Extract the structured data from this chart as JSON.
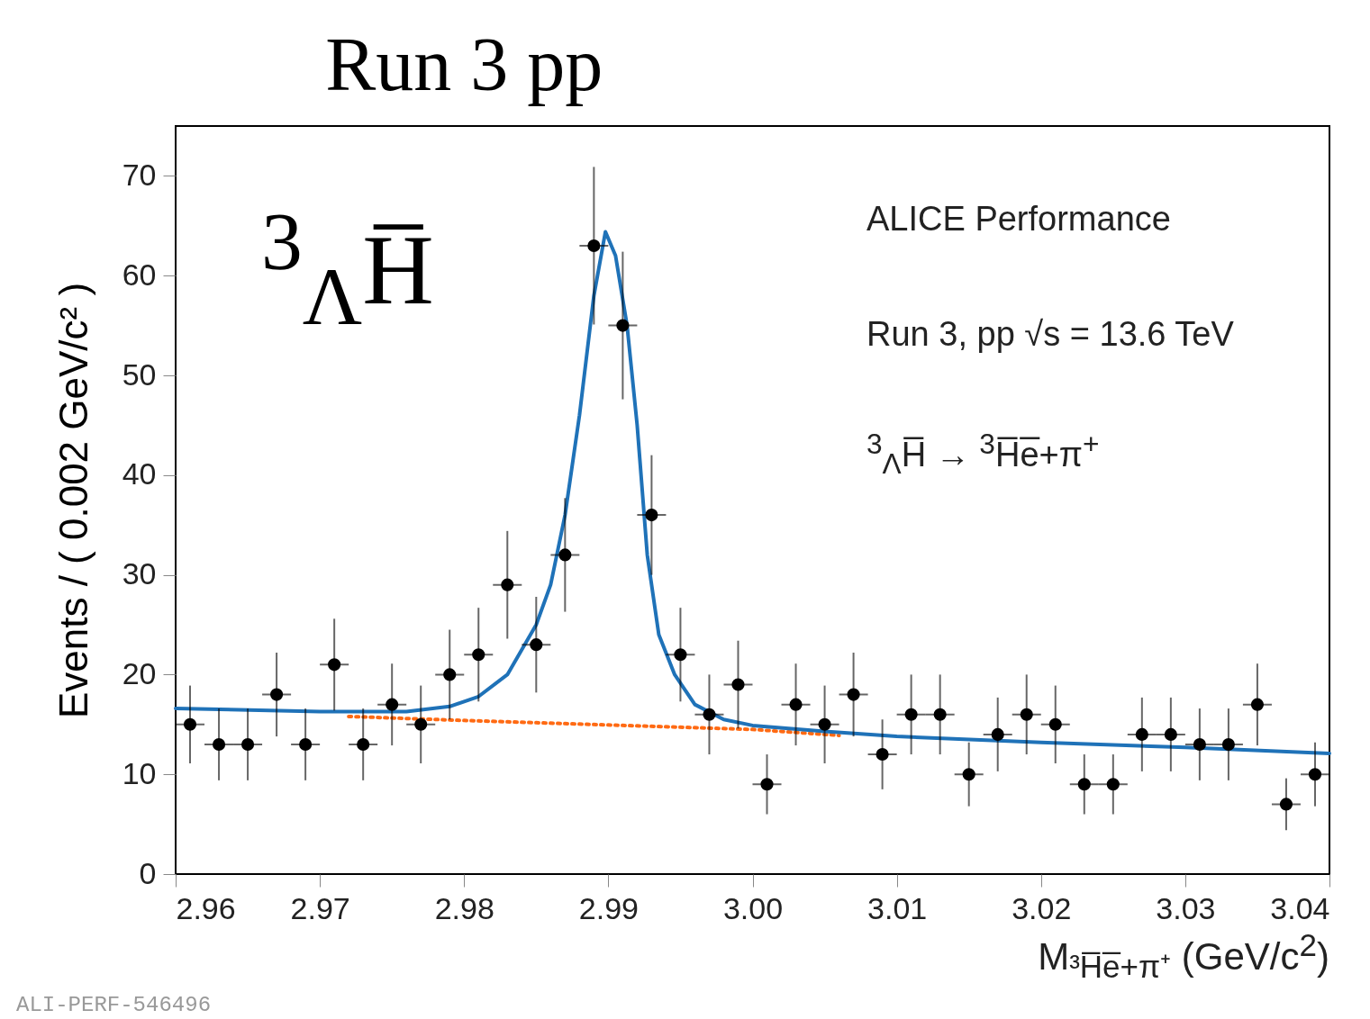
{
  "chart_data": {
    "type": "scatter",
    "title": "Run 3 pp",
    "xlabel": "M$_{³H̅e̅+π⁺}$ (GeV/c$^{2}$)",
    "ylabel": "Events / ( 0.002 GeV/c² )",
    "xlim": [
      2.96,
      3.04
    ],
    "xticks": [
      2.96,
      2.97,
      2.98,
      2.99,
      {
        "value": 3,
        "label": "3.00"
      },
      3.01,
      3.02,
      3.03,
      3.04
    ],
    "ylim": [
      0,
      75
    ],
    "yticks": [
      0,
      10,
      20,
      30,
      40,
      50,
      60,
      70
    ],
    "grid": false,
    "annotations": [
      "$^{3}$$_{Λ}$H̅",
      "ALICE Performance",
      "Run 3, pp √s = 13.6 TeV",
      "$^{3}$$_{Λ}$H̅ → $^{3}$H̅e̅+π$^{+}$",
      "ALI-PERF-546496"
    ],
    "series": [
      {
        "type": "line",
        "color": "#ff6a13",
        "line_style": "dotted",
        "x": [
          2.972,
          2.98,
          3.0,
          3.006
        ],
        "values": [
          15.8,
          15.4,
          14.5,
          13.9
        ]
      },
      {
        "type": "line",
        "color": "#1f72b8",
        "line_style": "solid",
        "x": [
          2.96,
          2.97,
          2.976,
          2.979,
          2.981,
          2.983,
          2.985,
          2.986,
          2.987,
          2.988,
          2.989,
          2.9898,
          2.9905,
          2.9913,
          2.992,
          2.9927,
          2.9935,
          2.9946,
          2.996,
          2.998,
          3.0,
          3.005,
          3.01,
          3.02,
          3.03,
          3.04
        ],
        "values": [
          16.6,
          16.3,
          16.3,
          16.8,
          17.8,
          20,
          25,
          29,
          36,
          46,
          58,
          64.4,
          62,
          55,
          45,
          32,
          24,
          20,
          17,
          15.5,
          14.9,
          14.3,
          13.8,
          13.2,
          12.7,
          12.1
        ]
      },
      {
        "color": "#000000",
        "marker": "circle",
        "x": [
          2.961,
          2.963,
          2.965,
          2.967,
          2.969,
          2.971,
          2.973,
          2.975,
          2.977,
          2.979,
          2.981,
          2.983,
          2.985,
          2.987,
          2.989,
          2.991,
          2.993,
          2.995,
          2.997,
          2.999,
          3.001,
          3.003,
          3.005,
          3.007,
          3.009,
          3.011,
          3.013,
          3.015,
          3.017,
          3.019,
          3.021,
          3.023,
          3.025,
          3.027,
          3.029,
          3.031,
          3.033,
          3.035,
          3.037,
          3.039
        ],
        "values": [
          15,
          13,
          13,
          18,
          13,
          21,
          13,
          17,
          15,
          20,
          22,
          29,
          23,
          32,
          63,
          55,
          36,
          22,
          16,
          19,
          9,
          17,
          15,
          18,
          12,
          16,
          16,
          10,
          14,
          16,
          15,
          9,
          9,
          14,
          14,
          13,
          13,
          17,
          7,
          10
        ],
        "errors": [
          3.9,
          3.6,
          3.6,
          4.2,
          3.6,
          4.6,
          3.6,
          4.1,
          3.9,
          4.5,
          4.7,
          5.4,
          4.8,
          5.7,
          7.9,
          7.4,
          6,
          4.7,
          4,
          4.4,
          3,
          4.1,
          3.9,
          4.2,
          3.5,
          4,
          4,
          3.2,
          3.7,
          4,
          3.9,
          3,
          3,
          3.7,
          3.7,
          3.6,
          3.6,
          4.1,
          2.6,
          3.2
        ],
        "xerrors": [
          0.001,
          0.001,
          0.001,
          0.001,
          0.001,
          0.001,
          0.001,
          0.001,
          0.001,
          0.001,
          0.001,
          0.001,
          0.001,
          0.001,
          0.001,
          0.001,
          0.001,
          0.001,
          0.001,
          0.001,
          0.001,
          0.001,
          0.001,
          0.001,
          0.001,
          0.001,
          0.001,
          0.001,
          0.001,
          0.001,
          0.001,
          0.001,
          0.001,
          0.001,
          0.001,
          0.001,
          0.001,
          0.001,
          0.001,
          0.001
        ]
      }
    ]
  }
}
